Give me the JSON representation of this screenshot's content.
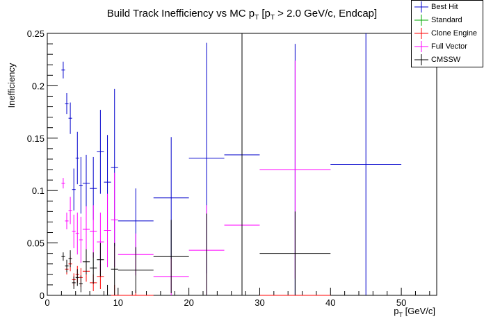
{
  "chart_data": {
    "type": "scatter",
    "title_main": "Build Track Inefficiency vs MC p",
    "title_sub1": "T",
    "title_mid": " [p",
    "title_sub2": "T",
    "title_end": " > 2.0 GeV/c, Endcap]",
    "ylabel": "Inefficiency",
    "xlabel_main": "p",
    "xlabel_sub": "T",
    "xlabel_unit": " [GeV/c]",
    "xlim": [
      0,
      55
    ],
    "ylim": [
      0,
      0.25
    ],
    "x_ticks": [
      "0",
      "10",
      "20",
      "30",
      "40",
      "50"
    ],
    "y_ticks": [
      "0",
      "0.05",
      "0.1",
      "0.15",
      "0.2",
      "0.25"
    ],
    "grid": false,
    "legend_position": "top-right",
    "series": [
      {
        "name": "Best Hit",
        "color": "#0000cc",
        "points": [
          {
            "x": 2.25,
            "xerr": 0.25,
            "y": 0.215,
            "yerr": 0.008
          },
          {
            "x": 2.75,
            "xerr": 0.25,
            "y": 0.183,
            "yerr": 0.01
          },
          {
            "x": 3.25,
            "xerr": 0.25,
            "y": 0.169,
            "yerr": 0.015
          },
          {
            "x": 3.75,
            "xerr": 0.25,
            "y": 0.101,
            "yerr": 0.02
          },
          {
            "x": 4.25,
            "xerr": 0.25,
            "y": 0.131,
            "yerr": 0.025
          },
          {
            "x": 4.75,
            "xerr": 0.25,
            "y": 0.105,
            "yerr": 0.027
          },
          {
            "x": 5.5,
            "xerr": 0.5,
            "y": 0.107,
            "yerr": 0.027
          },
          {
            "x": 6.5,
            "xerr": 0.5,
            "y": 0.102,
            "yerr": 0.03
          },
          {
            "x": 7.5,
            "xerr": 0.5,
            "y": 0.137,
            "yerr": 0.04
          },
          {
            "x": 8.5,
            "xerr": 0.5,
            "y": 0.108,
            "yerr": 0.045
          },
          {
            "x": 9.5,
            "xerr": 0.5,
            "y": 0.122,
            "yerr": 0.075
          },
          {
            "x": 12.5,
            "xerr": 2.5,
            "y": 0.071,
            "yerr": 0.031
          },
          {
            "x": 17.5,
            "xerr": 2.5,
            "y": 0.093,
            "yerr": 0.058
          },
          {
            "x": 22.5,
            "xerr": 2.5,
            "y": 0.131,
            "yerr": 0.11
          },
          {
            "x": 27.5,
            "xerr": 2.5,
            "y": 0.134,
            "yerr": 0.12
          },
          {
            "x": 35,
            "xerr": 5,
            "y": 0.12,
            "yerr": 0.12
          },
          {
            "x": 45,
            "xerr": 5,
            "y": 0.125,
            "yerr": 0.125
          }
        ]
      },
      {
        "name": "Standard",
        "color": "#00aa00",
        "points": []
      },
      {
        "name": "Clone Engine",
        "color": "#ff0000",
        "points": [
          {
            "x": 2.75,
            "xerr": 0.25,
            "y": 0.025,
            "yerr": 0.005
          },
          {
            "x": 3.25,
            "xerr": 0.25,
            "y": 0.03,
            "yerr": 0.007
          },
          {
            "x": 3.75,
            "xerr": 0.25,
            "y": 0.015,
            "yerr": 0.006
          },
          {
            "x": 4.25,
            "xerr": 0.25,
            "y": 0.02,
            "yerr": 0.008
          },
          {
            "x": 4.75,
            "xerr": 0.25,
            "y": 0.017,
            "yerr": 0.009
          },
          {
            "x": 5.5,
            "xerr": 0.5,
            "y": 0.023,
            "yerr": 0.01
          },
          {
            "x": 6.5,
            "xerr": 0.5,
            "y": 0.012,
            "yerr": 0.008
          },
          {
            "x": 7.5,
            "xerr": 0.5,
            "y": 0.018,
            "yerr": 0.012
          },
          {
            "x": 9.5,
            "xerr": 0.5,
            "y": 0.0,
            "yerr": 0.01
          },
          {
            "x": 12.5,
            "xerr": 2.5,
            "y": 0.0,
            "yerr": 0.005
          },
          {
            "x": 35,
            "xerr": 5,
            "y": 0.0,
            "yerr": 0.0
          }
        ]
      },
      {
        "name": "Full Vector",
        "color": "#ff00ff",
        "points": [
          {
            "x": 2.25,
            "xerr": 0.25,
            "y": 0.107,
            "yerr": 0.005
          },
          {
            "x": 2.75,
            "xerr": 0.25,
            "y": 0.071,
            "yerr": 0.008
          },
          {
            "x": 3.25,
            "xerr": 0.25,
            "y": 0.081,
            "yerr": 0.013
          },
          {
            "x": 3.75,
            "xerr": 0.25,
            "y": 0.061,
            "yerr": 0.016
          },
          {
            "x": 4.25,
            "xerr": 0.25,
            "y": 0.059,
            "yerr": 0.02
          },
          {
            "x": 4.75,
            "xerr": 0.25,
            "y": 0.053,
            "yerr": 0.022
          },
          {
            "x": 5.5,
            "xerr": 0.5,
            "y": 0.063,
            "yerr": 0.022
          },
          {
            "x": 6.5,
            "xerr": 0.5,
            "y": 0.061,
            "yerr": 0.025
          },
          {
            "x": 7.5,
            "xerr": 0.5,
            "y": 0.051,
            "yerr": 0.028
          },
          {
            "x": 8.5,
            "xerr": 0.5,
            "y": 0.062,
            "yerr": 0.035
          },
          {
            "x": 9.5,
            "xerr": 0.5,
            "y": 0.072,
            "yerr": 0.045
          },
          {
            "x": 12.5,
            "xerr": 2.5,
            "y": 0.039,
            "yerr": 0.02
          },
          {
            "x": 17.5,
            "xerr": 2.5,
            "y": 0.018,
            "yerr": 0.018
          },
          {
            "x": 22.5,
            "xerr": 2.5,
            "y": 0.043,
            "yerr": 0.043
          },
          {
            "x": 27.5,
            "xerr": 2.5,
            "y": 0.067,
            "yerr": 0.067
          },
          {
            "x": 35,
            "xerr": 5,
            "y": 0.12,
            "yerr": 0.104
          }
        ]
      },
      {
        "name": "CMSSW",
        "color": "#000000",
        "points": [
          {
            "x": 2.25,
            "xerr": 0.25,
            "y": 0.037,
            "yerr": 0.004
          },
          {
            "x": 2.75,
            "xerr": 0.25,
            "y": 0.028,
            "yerr": 0.006
          },
          {
            "x": 3.25,
            "xerr": 0.25,
            "y": 0.035,
            "yerr": 0.008
          },
          {
            "x": 3.75,
            "xerr": 0.25,
            "y": 0.012,
            "yerr": 0.006
          },
          {
            "x": 4.25,
            "xerr": 0.25,
            "y": 0.017,
            "yerr": 0.008
          },
          {
            "x": 4.75,
            "xerr": 0.25,
            "y": 0.011,
            "yerr": 0.008
          },
          {
            "x": 5.5,
            "xerr": 0.5,
            "y": 0.032,
            "yerr": 0.012
          },
          {
            "x": 6.5,
            "xerr": 0.5,
            "y": 0.026,
            "yerr": 0.015
          },
          {
            "x": 7.5,
            "xerr": 0.5,
            "y": 0.034,
            "yerr": 0.016
          },
          {
            "x": 8.5,
            "xerr": 0.5,
            "y": 0.0,
            "yerr": 0.01
          },
          {
            "x": 9.5,
            "xerr": 0.5,
            "y": 0.025,
            "yerr": 0.025
          },
          {
            "x": 12.5,
            "xerr": 2.5,
            "y": 0.024,
            "yerr": 0.022
          },
          {
            "x": 17.5,
            "xerr": 2.5,
            "y": 0.037,
            "yerr": 0.035
          },
          {
            "x": 22.5,
            "xerr": 2.5,
            "y": 0.0,
            "yerr": 0.078
          },
          {
            "x": 27.5,
            "xerr": 2.5,
            "y": 0.0,
            "yerr": 0.25
          },
          {
            "x": 35,
            "xerr": 5,
            "y": 0.04,
            "yerr": 0.04
          },
          {
            "x": 45,
            "xerr": 5,
            "y": 0.0,
            "yerr": 0.0
          }
        ]
      }
    ]
  }
}
